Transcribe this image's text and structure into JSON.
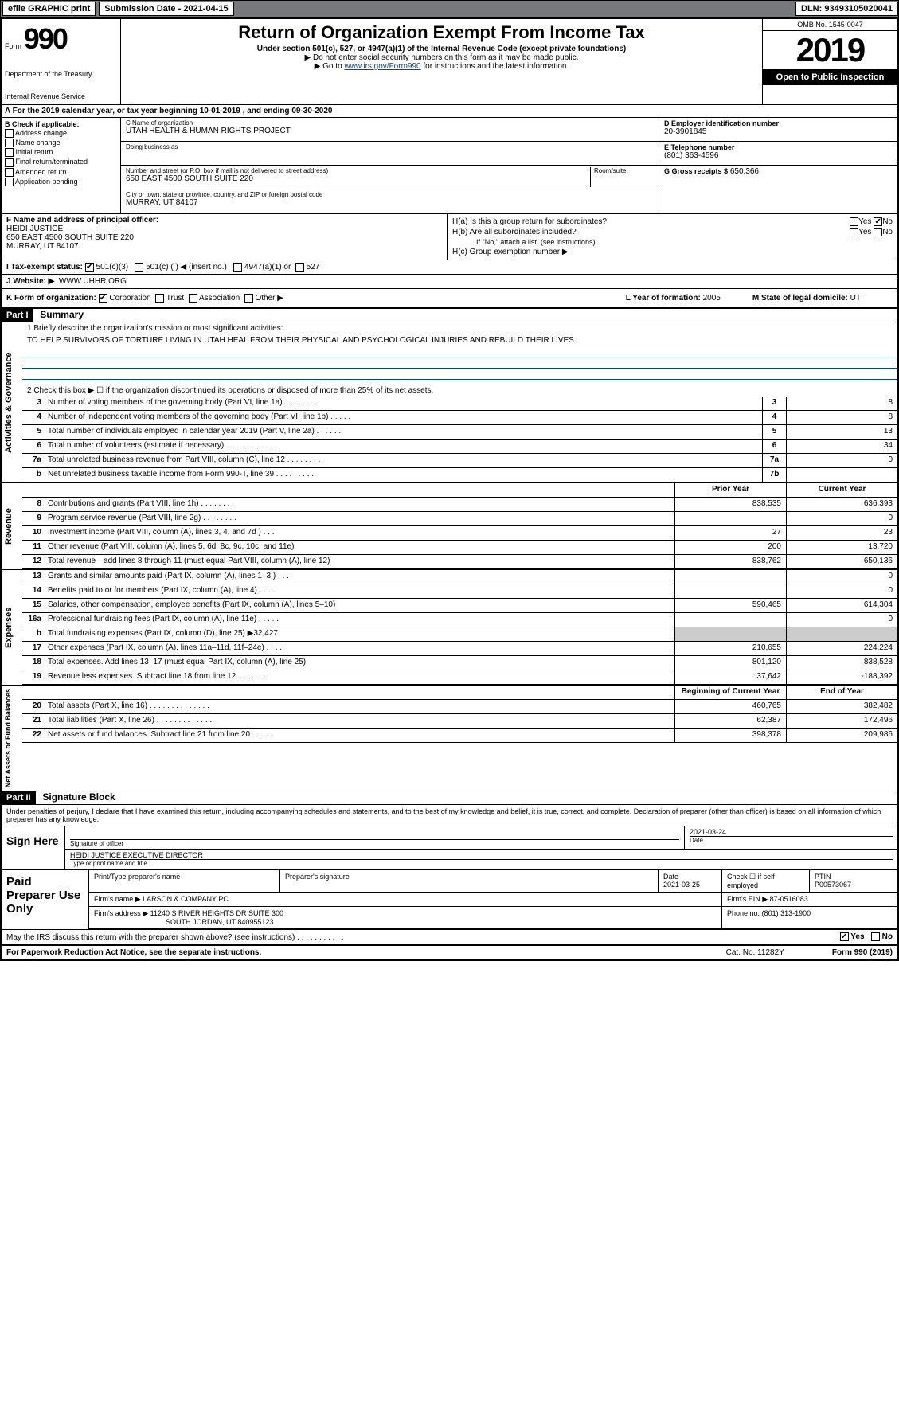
{
  "topbar": {
    "efile": "efile GRAPHIC print",
    "submission": "Submission Date - 2021-04-15",
    "dln": "DLN: 93493105020041"
  },
  "header": {
    "form_prefix": "Form",
    "form_no": "990",
    "dept1": "Department of the Treasury",
    "dept2": "Internal Revenue Service",
    "title": "Return of Organization Exempt From Income Tax",
    "subtitle": "Under section 501(c), 527, or 4947(a)(1) of the Internal Revenue Code (except private foundations)",
    "note1": "▶ Do not enter social security numbers on this form as it may be made public.",
    "note2_pre": "▶ Go to ",
    "note2_link": "www.irs.gov/Form990",
    "note2_post": " for instructions and the latest information.",
    "omb": "OMB No. 1545-0047",
    "year": "2019",
    "open": "Open to Public Inspection"
  },
  "lineA": "A For the 2019 calendar year, or tax year beginning 10-01-2019   , and ending 09-30-2020",
  "boxB": {
    "label": "B Check if applicable:",
    "items": [
      "Address change",
      "Name change",
      "Initial return",
      "Final return/terminated",
      "Amended return",
      "Application pending"
    ]
  },
  "boxC": {
    "name_label": "C Name of organization",
    "name": "UTAH HEALTH & HUMAN RIGHTS PROJECT",
    "dba_label": "Doing business as",
    "addr_label": "Number and street (or P.O. box if mail is not delivered to street address)",
    "room_label": "Room/suite",
    "addr": "650 EAST 4500 SOUTH SUITE 220",
    "city_label": "City or town, state or province, country, and ZIP or foreign postal code",
    "city": "MURRAY, UT  84107"
  },
  "boxD": {
    "label": "D Employer identification number",
    "val": "20-3901845"
  },
  "boxE": {
    "label": "E Telephone number",
    "val": "(801) 363-4596"
  },
  "boxG": {
    "label": "G Gross receipts $",
    "val": "650,366"
  },
  "boxF": {
    "label": "F Name and address of principal officer:",
    "lines": [
      "HEIDI JUSTICE",
      "650 EAST 4500 SOUTH SUITE 220",
      "MURRAY, UT  84107"
    ]
  },
  "boxH": {
    "a": "H(a)  Is this a group return for subordinates?",
    "b": "H(b)  Are all subordinates included?",
    "bnote": "If \"No,\" attach a list. (see instructions)",
    "c": "H(c)  Group exemption number ▶",
    "yes": "Yes",
    "no": "No"
  },
  "boxI": {
    "label": "I  Tax-exempt status:",
    "o1": "501(c)(3)",
    "o2": "501(c) (  ) ◀ (insert no.)",
    "o3": "4947(a)(1) or",
    "o4": "527"
  },
  "boxJ": {
    "label": "J  Website: ▶",
    "val": "WWW.UHHR.ORG"
  },
  "boxK": {
    "label": "K Form of organization:",
    "o1": "Corporation",
    "o2": "Trust",
    "o3": "Association",
    "o4": "Other ▶"
  },
  "boxL": {
    "label": "L Year of formation:",
    "val": "2005"
  },
  "boxM": {
    "label": "M State of legal domicile:",
    "val": "UT"
  },
  "partI": {
    "tag": "Part I",
    "title": "Summary"
  },
  "summary": {
    "tabs": {
      "a": "Activities & Governance",
      "b": "Revenue",
      "c": "Expenses",
      "d": "Net Assets or Fund Balances"
    },
    "line1": "1  Briefly describe the organization's mission or most significant activities:",
    "mission": "TO HELP SURVIVORS OF TORTURE LIVING IN UTAH HEAL FROM THEIR PHYSICAL AND PSYCHOLOGICAL INJURIES AND REBUILD THEIR LIVES.",
    "line2": "2  Check this box ▶ ☐  if the organization discontinued its operations or disposed of more than 25% of its net assets.",
    "hdr_prior": "Prior Year",
    "hdr_curr": "Current Year",
    "hdr_boy": "Beginning of Current Year",
    "hdr_eoy": "End of Year",
    "rows_gov": [
      {
        "n": "3",
        "d": "Number of voting members of the governing body (Part VI, line 1a)   .    .    .    .    .    .    .    .",
        "b": "3",
        "v": "8"
      },
      {
        "n": "4",
        "d": "Number of independent voting members of the governing body (Part VI, line 1b)   .    .    .    .    .",
        "b": "4",
        "v": "8"
      },
      {
        "n": "5",
        "d": "Total number of individuals employed in calendar year 2019 (Part V, line 2a)   .    .    .    .    .    .",
        "b": "5",
        "v": "13"
      },
      {
        "n": "6",
        "d": "Total number of volunteers (estimate if necessary)   .    .    .    .    .    .    .    .    .    .    .    .",
        "b": "6",
        "v": "34"
      },
      {
        "n": "7a",
        "d": "Total unrelated business revenue from Part VIII, column (C), line 12   .    .    .    .    .    .    .    .",
        "b": "7a",
        "v": "0"
      },
      {
        "n": "b",
        "d": "Net unrelated business taxable income from Form 990-T, line 39   .    .    .    .    .    .    .    .    .",
        "b": "7b",
        "v": ""
      }
    ],
    "rows_rev": [
      {
        "n": "8",
        "d": "Contributions and grants (Part VIII, line 1h)   .    .    .    .    .    .    .    .",
        "p": "838,535",
        "c": "636,393"
      },
      {
        "n": "9",
        "d": "Program service revenue (Part VIII, line 2g)   .    .    .    .    .    .    .    .",
        "p": "",
        "c": "0"
      },
      {
        "n": "10",
        "d": "Investment income (Part VIII, column (A), lines 3, 4, and 7d )   .    .    .",
        "p": "27",
        "c": "23"
      },
      {
        "n": "11",
        "d": "Other revenue (Part VIII, column (A), lines 5, 6d, 8c, 9c, 10c, and 11e)",
        "p": "200",
        "c": "13,720"
      },
      {
        "n": "12",
        "d": "Total revenue—add lines 8 through 11 (must equal Part VIII, column (A), line 12)",
        "p": "838,762",
        "c": "650,136"
      }
    ],
    "rows_exp": [
      {
        "n": "13",
        "d": "Grants and similar amounts paid (Part IX, column (A), lines 1–3 )   .    .    .",
        "p": "",
        "c": "0"
      },
      {
        "n": "14",
        "d": "Benefits paid to or for members (Part IX, column (A), line 4)   .    .    .    .",
        "p": "",
        "c": "0"
      },
      {
        "n": "15",
        "d": "Salaries, other compensation, employee benefits (Part IX, column (A), lines 5–10)",
        "p": "590,465",
        "c": "614,304"
      },
      {
        "n": "16a",
        "d": "Professional fundraising fees (Part IX, column (A), line 11e)   .    .    .    .    .",
        "p": "",
        "c": "0"
      },
      {
        "n": "b",
        "d": "Total fundraising expenses (Part IX, column (D), line 25) ▶32,427",
        "p": "shade",
        "c": "shade"
      },
      {
        "n": "17",
        "d": "Other expenses (Part IX, column (A), lines 11a–11d, 11f–24e)   .    .    .    .",
        "p": "210,655",
        "c": "224,224"
      },
      {
        "n": "18",
        "d": "Total expenses. Add lines 13–17 (must equal Part IX, column (A), line 25)",
        "p": "801,120",
        "c": "838,528"
      },
      {
        "n": "19",
        "d": "Revenue less expenses. Subtract line 18 from line 12   .    .    .    .    .    .    .",
        "p": "37,642",
        "c": "-188,392"
      }
    ],
    "rows_net": [
      {
        "n": "20",
        "d": "Total assets (Part X, line 16)   .    .    .    .    .    .    .    .    .    .    .    .    .    .",
        "p": "460,765",
        "c": "382,482"
      },
      {
        "n": "21",
        "d": "Total liabilities (Part X, line 26)   .    .    .    .    .    .    .    .    .    .    .    .    .",
        "p": "62,387",
        "c": "172,496"
      },
      {
        "n": "22",
        "d": "Net assets or fund balances. Subtract line 21 from line 20   .    .    .    .    .",
        "p": "398,378",
        "c": "209,986"
      }
    ]
  },
  "partII": {
    "tag": "Part II",
    "title": "Signature Block"
  },
  "perjury": "Under penalties of perjury, I declare that I have examined this return, including accompanying schedules and statements, and to the best of my knowledge and belief, it is true, correct, and complete. Declaration of preparer (other than officer) is based on all information of which preparer has any knowledge.",
  "sign": {
    "label": "Sign Here",
    "sig_officer": "Signature of officer",
    "date": "2021-03-24",
    "date_label": "Date",
    "name": "HEIDI JUSTICE  EXECUTIVE DIRECTOR",
    "name_label": "Type or print name and title"
  },
  "paid": {
    "label": "Paid Preparer Use Only",
    "h1": "Print/Type preparer's name",
    "h2": "Preparer's signature",
    "h3": "Date",
    "date": "2021-03-25",
    "h4": "Check ☐ if self-employed",
    "h5": "PTIN",
    "ptin": "P00573067",
    "firm_label": "Firm's name    ▶",
    "firm": "LARSON & COMPANY PC",
    "ein_label": "Firm's EIN ▶",
    "ein": "87-0516083",
    "addr_label": "Firm's address ▶",
    "addr1": "11240 S RIVER HEIGHTS DR SUITE 300",
    "addr2": "SOUTH JORDAN, UT  840955123",
    "phone_label": "Phone no.",
    "phone": "(801) 313-1900"
  },
  "irsq": {
    "q": "May the IRS discuss this return with the preparer shown above? (see instructions)   .    .    .    .    .    .    .    .    .    .    .",
    "yes": "Yes",
    "no": "No"
  },
  "footer": {
    "left": "For Paperwork Reduction Act Notice, see the separate instructions.",
    "mid": "Cat. No. 11282Y",
    "right": "Form 990 (2019)"
  }
}
